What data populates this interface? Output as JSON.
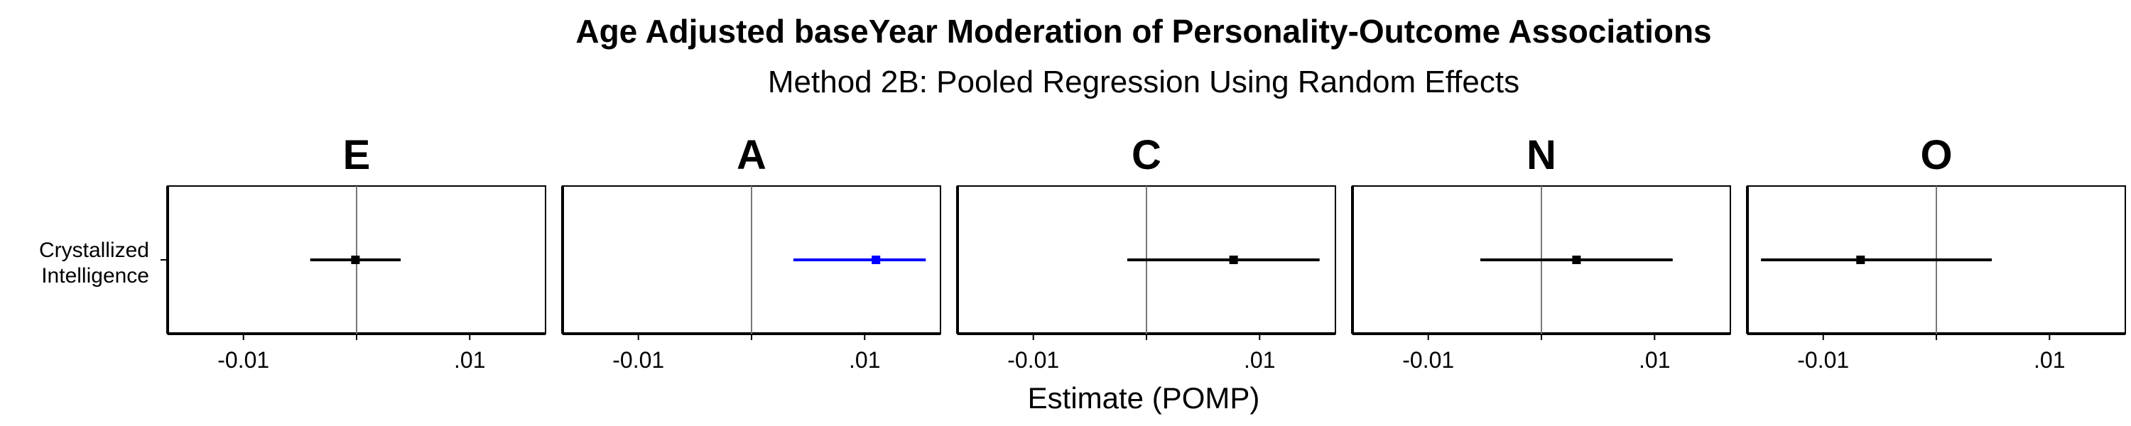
{
  "chart_data": {
    "type": "forest",
    "title": "Age Adjusted baseYear Moderation of Personality-Outcome Associations",
    "subtitle": "Method 2B: Pooled Regression Using Random Effects",
    "xlabel": "Estimate (POMP)",
    "ylabel_lines": [
      "Crystallized",
      "Intelligence"
    ],
    "xlim": [
      -0.0167,
      0.0167
    ],
    "xticks": [
      {
        "value": -0.01,
        "label": "-0.01"
      },
      {
        "value": 0,
        "label": ""
      },
      {
        "value": 0.01,
        "label": ".01"
      }
    ],
    "reference_line": 0,
    "panels": [
      {
        "facet": "E",
        "estimate": -0.0001,
        "ci_low": -0.0041,
        "ci_high": 0.0039,
        "color": "#000000"
      },
      {
        "facet": "A",
        "estimate": 0.011,
        "ci_low": 0.0037,
        "ci_high": 0.0154,
        "color": "#0000ff"
      },
      {
        "facet": "C",
        "estimate": 0.0077,
        "ci_low": -0.0017,
        "ci_high": 0.0153,
        "color": "#000000"
      },
      {
        "facet": "N",
        "estimate": 0.0031,
        "ci_low": -0.0054,
        "ci_high": 0.0116,
        "color": "#000000"
      },
      {
        "facet": "O",
        "estimate": -0.0067,
        "ci_low": -0.0155,
        "ci_high": 0.0049,
        "color": "#000000"
      }
    ]
  }
}
